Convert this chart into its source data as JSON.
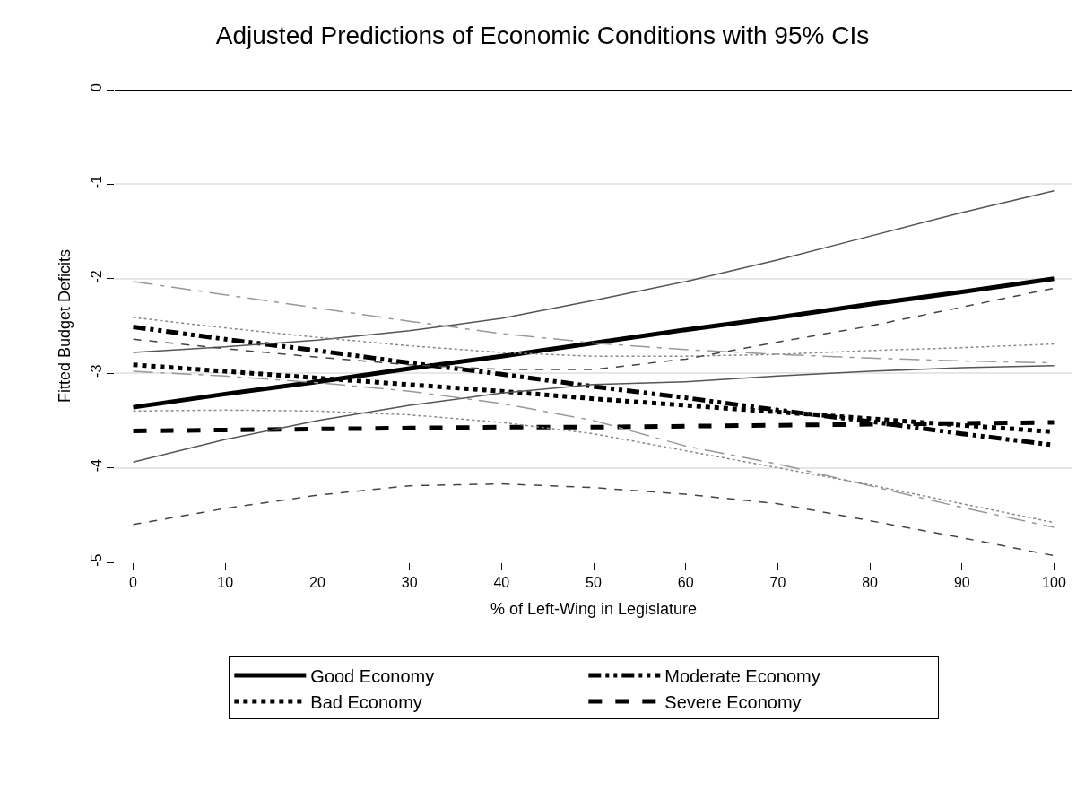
{
  "chart_data": {
    "type": "line",
    "title": "Adjusted Predictions of Economic Conditions with 95% CIs",
    "xlabel": "% of Left-Wing in Legislature",
    "ylabel": "Fitted Budget Deficits",
    "x": [
      0,
      10,
      20,
      30,
      40,
      50,
      60,
      70,
      80,
      90,
      100
    ],
    "series": [
      {
        "name": "Good Economy",
        "color": "#000000",
        "line_style": "solid",
        "values": [
          -3.36,
          -3.22,
          -3.09,
          -2.95,
          -2.82,
          -2.68,
          -2.54,
          -2.41,
          -2.27,
          -2.14,
          -2.0
        ]
      },
      {
        "name": "Moderate Economy",
        "color": "#000000",
        "line_style": "dashdotdot",
        "values": [
          -2.51,
          -2.64,
          -2.76,
          -2.89,
          -3.01,
          -3.14,
          -3.26,
          -3.39,
          -3.51,
          -3.64,
          -3.76
        ]
      },
      {
        "name": "Bad Economy",
        "color": "#000000",
        "line_style": "dotted",
        "values": [
          -2.91,
          -2.98,
          -3.05,
          -3.12,
          -3.19,
          -3.27,
          -3.34,
          -3.41,
          -3.48,
          -3.55,
          -3.62
        ]
      },
      {
        "name": "Severe Economy",
        "color": "#000000",
        "line_style": "dashed",
        "values": [
          -3.61,
          -3.6,
          -3.59,
          -3.58,
          -3.57,
          -3.57,
          -3.56,
          -3.55,
          -3.54,
          -3.53,
          -3.52
        ]
      },
      {
        "color": "#555555",
        "line_style": "solid",
        "values": [
          -2.78,
          -2.72,
          -2.65,
          -2.55,
          -2.42,
          -2.23,
          -2.03,
          -1.8,
          -1.55,
          -1.3,
          -1.07
        ]
      },
      {
        "color": "#555555",
        "line_style": "solid",
        "values": [
          -3.94,
          -3.7,
          -3.5,
          -3.34,
          -3.21,
          -3.12,
          -3.09,
          -3.03,
          -2.98,
          -2.94,
          -2.92
        ]
      },
      {
        "color": "#999999",
        "line_style": "longdashdot",
        "values": [
          -2.03,
          -2.17,
          -2.31,
          -2.45,
          -2.58,
          -2.68,
          -2.75,
          -2.8,
          -2.84,
          -2.87,
          -2.89
        ]
      },
      {
        "color": "#999999",
        "line_style": "longdashdot",
        "values": [
          -2.98,
          -3.03,
          -3.1,
          -3.19,
          -3.32,
          -3.5,
          -3.77,
          -3.96,
          -4.19,
          -4.42,
          -4.63
        ]
      },
      {
        "color": "#888888",
        "line_style": "dotted",
        "values": [
          -2.41,
          -2.52,
          -2.62,
          -2.71,
          -2.78,
          -2.82,
          -2.82,
          -2.8,
          -2.76,
          -2.73,
          -2.69
        ]
      },
      {
        "color": "#888888",
        "line_style": "dotted",
        "values": [
          -3.4,
          -3.39,
          -3.4,
          -3.44,
          -3.52,
          -3.64,
          -3.82,
          -4.0,
          -4.18,
          -4.38,
          -4.58
        ]
      },
      {
        "color": "#444444",
        "line_style": "dashed",
        "values": [
          -2.64,
          -2.74,
          -2.83,
          -2.91,
          -2.96,
          -2.96,
          -2.85,
          -2.67,
          -2.5,
          -2.3,
          -2.1
        ]
      },
      {
        "color": "#444444",
        "line_style": "dashed",
        "values": [
          -4.6,
          -4.43,
          -4.29,
          -4.19,
          -4.17,
          -4.21,
          -4.28,
          -4.38,
          -4.56,
          -4.74,
          -4.93
        ]
      }
    ],
    "xlim": [
      -2,
      102
    ],
    "xticks": [
      0,
      10,
      20,
      30,
      40,
      50,
      60,
      70,
      80,
      90,
      100
    ],
    "ylim": [
      -5,
      0
    ],
    "yticks": [
      0,
      -1,
      -2,
      -3,
      -4,
      -5
    ],
    "ref_lines": [
      {
        "axis": "y",
        "value": 0,
        "color": "#000000"
      }
    ],
    "grid": "y",
    "legend": "bottom",
    "marker": "none"
  }
}
